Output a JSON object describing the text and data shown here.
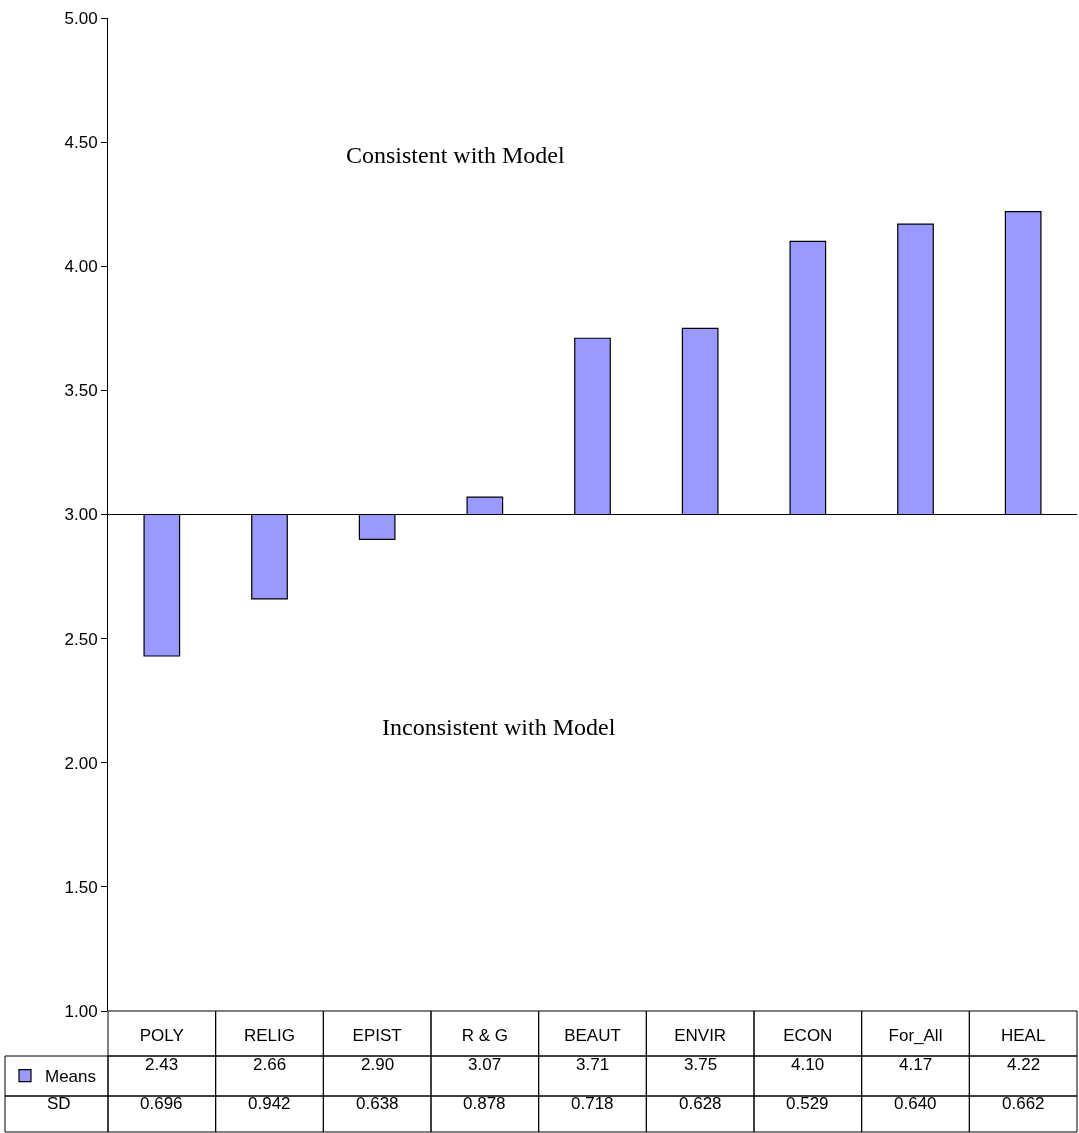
{
  "chart_data": {
    "type": "bar",
    "categories": [
      "POLY",
      "RELIG",
      "EPIST",
      "R & G",
      "BEAUT",
      "ENVIR",
      "ECON",
      "For_All",
      "HEAL"
    ],
    "series": [
      {
        "name": "Means",
        "color": "#9999ff",
        "base": [
          3,
          3,
          3,
          3,
          3,
          3,
          3,
          3,
          3
        ],
        "values": [
          -0.57,
          -0.34,
          -0.1,
          0.07,
          0.71,
          0.75,
          1.1,
          1.17,
          1.22
        ],
        "value_labels": [
          "2.43",
          "2.66",
          "2.90",
          "3.07",
          "3.71",
          "3.75",
          "4.10",
          "4.17",
          "4.22"
        ]
      }
    ],
    "ylim": [
      1,
      5
    ],
    "yticks": [
      {
        "value": 1,
        "label": "1.00"
      },
      {
        "value": 1.5,
        "label": "1.50"
      },
      {
        "value": 2,
        "label": "2.00"
      },
      {
        "value": 2.5,
        "label": "2.50"
      },
      {
        "value": 3,
        "label": "3.00"
      },
      {
        "value": 3.5,
        "label": "3.50"
      },
      {
        "value": 4,
        "label": "4.00"
      },
      {
        "value": 4.5,
        "label": "4.50"
      },
      {
        "value": 5,
        "label": "5.00"
      }
    ],
    "ref_lines": [
      {
        "axis": "y",
        "value": 3,
        "color": "#000000"
      }
    ],
    "annotations": [
      "Consistent with Model",
      "Inconsistent with Model",
      "SD",
      "0.696",
      "0.942",
      "0.638",
      "0.878",
      "0.718",
      "0.628",
      "0.529",
      "0.640",
      "0.662"
    ],
    "legend": "bottom left"
  }
}
